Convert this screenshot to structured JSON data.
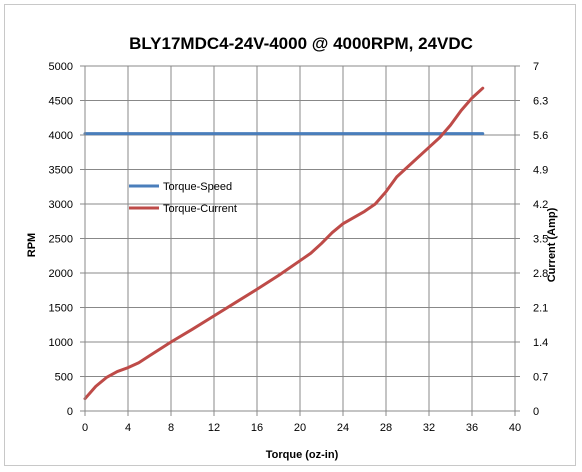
{
  "chart_data": {
    "type": "line",
    "title": "BLY17MDC4-24V-4000 @ 4000RPM, 24VDC",
    "xlabel": "Torque (oz-in)",
    "ylabel": "RPM",
    "y2label": "Current (Amp)",
    "xlim": [
      0,
      40
    ],
    "ylim": [
      0,
      5000
    ],
    "y2lim": [
      0,
      7
    ],
    "xticks": [
      "0",
      "4",
      "8",
      "12",
      "16",
      "20",
      "24",
      "28",
      "32",
      "36",
      "40"
    ],
    "yticks": [
      "0",
      "500",
      "1000",
      "1500",
      "2000",
      "2500",
      "3000",
      "3500",
      "4000",
      "4500",
      "5000"
    ],
    "y2ticks": [
      "0",
      "0.7",
      "1.4",
      "2.1",
      "2.8",
      "3.5",
      "4.2",
      "4.9",
      "5.6",
      "6.3",
      "7"
    ],
    "grid": true,
    "legend_position": "middle-left",
    "series": [
      {
        "name": "Torque-Speed",
        "axis": "left",
        "color": "#4a7ebb",
        "x": [
          0,
          37
        ],
        "y": [
          4020,
          4020
        ]
      },
      {
        "name": "Torque-Current",
        "axis": "right",
        "color": "#be4b48",
        "x": [
          0,
          1,
          2,
          3,
          4,
          5,
          6,
          8,
          10,
          12,
          14,
          16,
          18,
          20,
          21,
          22,
          23,
          24,
          26,
          27,
          28,
          29,
          30,
          32,
          33,
          34,
          35,
          36,
          37
        ],
        "y": [
          0.25,
          0.5,
          0.68,
          0.8,
          0.88,
          0.98,
          1.12,
          1.4,
          1.66,
          1.93,
          2.2,
          2.47,
          2.75,
          3.05,
          3.2,
          3.4,
          3.62,
          3.8,
          4.05,
          4.2,
          4.45,
          4.75,
          4.95,
          5.35,
          5.55,
          5.8,
          6.1,
          6.35,
          6.55
        ]
      }
    ]
  }
}
